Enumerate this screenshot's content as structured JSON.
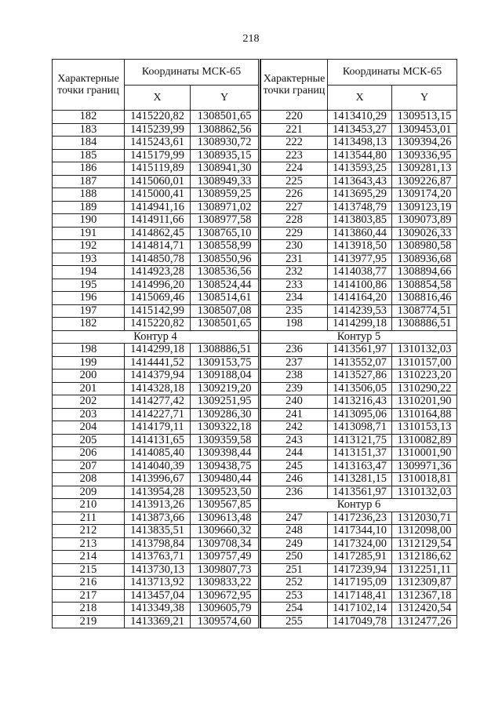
{
  "page_number": "218",
  "header": {
    "points_label": "Характерные точки границ",
    "coords_label": "Координаты МСК-65",
    "x_label": "X",
    "y_label": "Y"
  },
  "left": {
    "rows": [
      [
        "182",
        "1415220,82",
        "1308501,65"
      ],
      [
        "183",
        "1415239,99",
        "1308862,56"
      ],
      [
        "184",
        "1415243,61",
        "1308930,72"
      ],
      [
        "185",
        "1415179,99",
        "1308935,15"
      ],
      [
        "186",
        "1415119,89",
        "1308941,30"
      ],
      [
        "187",
        "1415060,01",
        "1308949,33"
      ],
      [
        "188",
        "1415000,41",
        "1308959,25"
      ],
      [
        "189",
        "1414941,16",
        "1308971,02"
      ],
      [
        "190",
        "1414911,66",
        "1308977,58"
      ],
      [
        "191",
        "1414862,45",
        "1308765,10"
      ],
      [
        "192",
        "1414814,71",
        "1308558,99"
      ],
      [
        "193",
        "1414850,78",
        "1308550,96"
      ],
      [
        "194",
        "1414923,28",
        "1308536,56"
      ],
      [
        "195",
        "1414996,20",
        "1308524,44"
      ],
      [
        "196",
        "1415069,46",
        "1308514,61"
      ],
      [
        "197",
        "1415142,99",
        "1308507,08"
      ],
      [
        "182",
        "1415220,82",
        "1308501,65"
      ],
      {
        "section": "Контур 4"
      },
      [
        "198",
        "1414299,18",
        "1308886,51"
      ],
      [
        "199",
        "1414441,52",
        "1309153,75"
      ],
      [
        "200",
        "1414379,94",
        "1309188,04"
      ],
      [
        "201",
        "1414328,18",
        "1309219,20"
      ],
      [
        "202",
        "1414277,42",
        "1309251,95"
      ],
      [
        "203",
        "1414227,71",
        "1309286,30"
      ],
      [
        "204",
        "1414179,11",
        "1309322,18"
      ],
      [
        "205",
        "1414131,65",
        "1309359,58"
      ],
      [
        "206",
        "1414085,40",
        "1309398,44"
      ],
      [
        "207",
        "1414040,39",
        "1309438,75"
      ],
      [
        "208",
        "1413996,67",
        "1309480,44"
      ],
      [
        "209",
        "1413954,28",
        "1309523,50"
      ],
      [
        "210",
        "1413913,26",
        "1309567,85"
      ],
      [
        "211",
        "1413873,66",
        "1309613,48"
      ],
      [
        "212",
        "1413835,51",
        "1309660,32"
      ],
      [
        "213",
        "1413798,84",
        "1309708,34"
      ],
      [
        "214",
        "1413763,71",
        "1309757,49"
      ],
      [
        "215",
        "1413730,13",
        "1309807,73"
      ],
      [
        "216",
        "1413713,92",
        "1309833,22"
      ],
      [
        "217",
        "1413457,04",
        "1309672,95"
      ],
      [
        "218",
        "1413349,38",
        "1309605,79"
      ],
      [
        "219",
        "1413369,21",
        "1309574,60"
      ]
    ]
  },
  "right": {
    "rows": [
      [
        "220",
        "1413410,29",
        "1309513,15"
      ],
      [
        "221",
        "1413453,27",
        "1309453,01"
      ],
      [
        "222",
        "1413498,13",
        "1309394,26"
      ],
      [
        "223",
        "1413544,80",
        "1309336,95"
      ],
      [
        "224",
        "1413593,25",
        "1309281,13"
      ],
      [
        "225",
        "1413643,43",
        "1309226,87"
      ],
      [
        "226",
        "1413695,29",
        "1309174,20"
      ],
      [
        "227",
        "1413748,79",
        "1309123,19"
      ],
      [
        "228",
        "1413803,85",
        "1309073,89"
      ],
      [
        "229",
        "1413860,44",
        "1309026,33"
      ],
      [
        "230",
        "1413918,50",
        "1308980,58"
      ],
      [
        "231",
        "1413977,95",
        "1308936,68"
      ],
      [
        "232",
        "1414038,77",
        "1308894,66"
      ],
      [
        "233",
        "1414100,86",
        "1308854,58"
      ],
      [
        "234",
        "1414164,20",
        "1308816,46"
      ],
      [
        "235",
        "1414239,53",
        "1308774,51"
      ],
      [
        "198",
        "1414299,18",
        "1308886,51"
      ],
      {
        "section": "Контур 5"
      },
      [
        "236",
        "1413561,97",
        "1310132,03"
      ],
      [
        "237",
        "1413552,07",
        "1310157,00"
      ],
      [
        "238",
        "1413527,86",
        "1310223,20"
      ],
      [
        "239",
        "1413506,05",
        "1310290,22"
      ],
      [
        "240",
        "1413216,43",
        "1310201,90"
      ],
      [
        "241",
        "1413095,06",
        "1310164,88"
      ],
      [
        "242",
        "1413098,71",
        "1310153,13"
      ],
      [
        "243",
        "1413121,75",
        "1310082,89"
      ],
      [
        "244",
        "1413151,37",
        "1310001,90"
      ],
      [
        "245",
        "1413163,47",
        "1309971,36"
      ],
      [
        "246",
        "1413281,15",
        "1310018,81"
      ],
      [
        "236",
        "1413561,97",
        "1310132,03"
      ],
      {
        "section": "Контур 6"
      },
      [
        "247",
        "1417236,23",
        "1312030,71"
      ],
      [
        "248",
        "1417344,10",
        "1312098,00"
      ],
      [
        "249",
        "1417324,00",
        "1312129,54"
      ],
      [
        "250",
        "1417285,91",
        "1312186,62"
      ],
      [
        "251",
        "1417239,94",
        "1312251,11"
      ],
      [
        "252",
        "1417195,09",
        "1312309,87"
      ],
      [
        "253",
        "1417148,41",
        "1312367,18"
      ],
      [
        "254",
        "1417102,14",
        "1312420,54"
      ],
      [
        "255",
        "1417049,78",
        "1312477,26"
      ]
    ]
  }
}
